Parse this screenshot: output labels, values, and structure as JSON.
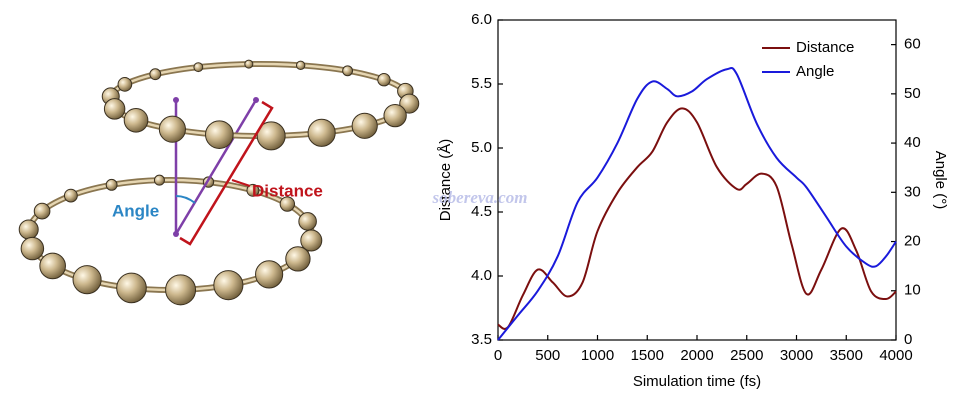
{
  "illustration": {
    "angle_label": "Angle",
    "distance_label": "Distance"
  },
  "chart_data": {
    "type": "line",
    "xlabel": "Simulation time (fs)",
    "ylabel": "Distance (Å)",
    "y2label": "Angle (°)",
    "annotation": "sobereva.com",
    "xlim": [
      0,
      4000
    ],
    "xticks": [
      0,
      500,
      1000,
      1500,
      2000,
      2500,
      3000,
      3500,
      4000
    ],
    "ylim": [
      3.5,
      6.0
    ],
    "yticks": [
      3.5,
      {
        "value": 4,
        "label": "4.0"
      },
      4.5,
      {
        "value": 5,
        "label": "5.0"
      },
      5.5,
      {
        "value": 6,
        "label": "6.0"
      }
    ],
    "y2lim": [
      0,
      65
    ],
    "y2ticks": [
      0,
      10,
      20,
      30,
      40,
      50,
      60
    ],
    "legend": "upper right",
    "series": [
      {
        "name": "Distance",
        "color": "#7b0f0f",
        "x": [
          0,
          100,
          250,
          400,
          550,
          700,
          850,
          1000,
          1200,
          1400,
          1550,
          1700,
          1850,
          2000,
          2200,
          2400,
          2500,
          2650,
          2800,
          2950,
          3100,
          3250,
          3450,
          3600,
          3750,
          3900,
          4000
        ],
        "values": [
          3.62,
          3.6,
          3.85,
          4.05,
          3.95,
          3.84,
          3.95,
          4.35,
          4.65,
          4.85,
          4.97,
          5.2,
          5.31,
          5.2,
          4.85,
          4.68,
          4.72,
          4.8,
          4.7,
          4.25,
          3.86,
          4.05,
          4.37,
          4.2,
          3.88,
          3.82,
          3.88
        ]
      },
      {
        "name": "Angle",
        "color": "#1a1adb",
        "axis": "y2",
        "x": [
          0,
          200,
          400,
          600,
          800,
          1000,
          1200,
          1400,
          1550,
          1700,
          1800,
          1950,
          2100,
          2300,
          2400,
          2600,
          2800,
          3000,
          3100,
          3300,
          3500,
          3700,
          3800,
          3900,
          4000
        ],
        "values": [
          0,
          5,
          10,
          17,
          28,
          33,
          40,
          49,
          52.5,
          51,
          49.5,
          50.5,
          53,
          55,
          54,
          44,
          37,
          33,
          31,
          25,
          19,
          15.5,
          15,
          17,
          20
        ]
      }
    ]
  }
}
